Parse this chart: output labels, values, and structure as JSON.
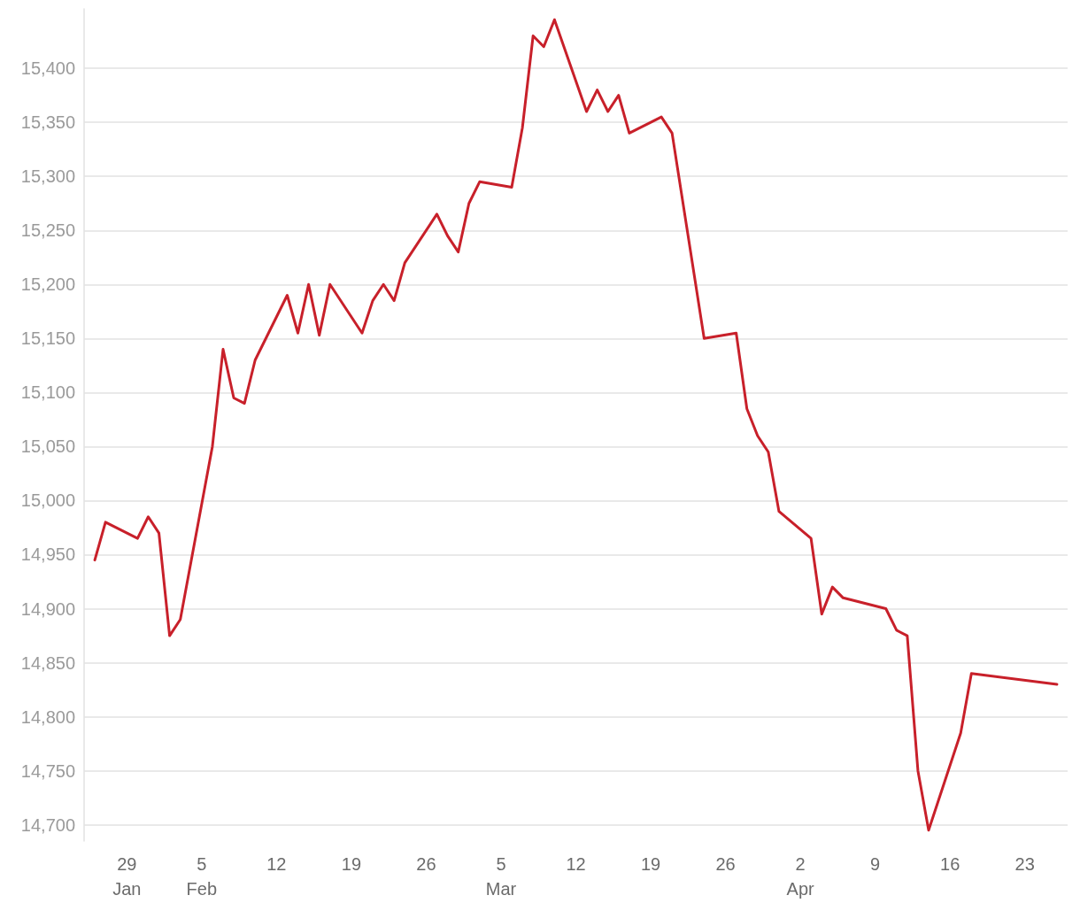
{
  "chart_data": {
    "type": "line",
    "x": [
      "--01-26",
      "--01-27",
      "--01-30",
      "--01-31",
      "--02-01",
      "--02-02",
      "--02-03",
      "--02-06",
      "--02-07",
      "--02-08",
      "--02-09",
      "--02-10",
      "--02-13",
      "--02-14",
      "--02-15",
      "--02-16",
      "--02-17",
      "--02-20",
      "--02-21",
      "--02-22",
      "--02-23",
      "--02-24",
      "--02-27",
      "--02-28",
      "--03-01",
      "--03-02",
      "--03-03",
      "--03-06",
      "--03-07",
      "--03-08",
      "--03-09",
      "--03-10",
      "--03-13",
      "--03-14",
      "--03-15",
      "--03-16",
      "--03-17",
      "--03-20",
      "--03-21",
      "--03-24",
      "--03-27",
      "--03-28",
      "--03-29",
      "--03-30",
      "--03-31",
      "--04-03",
      "--04-04",
      "--04-05",
      "--04-06",
      "--04-10",
      "--04-11",
      "--04-12",
      "--04-13",
      "--04-14",
      "--04-17",
      "--04-18",
      "--04-26"
    ],
    "series": [
      {
        "color": "#c8202a",
        "values": [
          14945,
          14980,
          14965,
          14985,
          14970,
          14875,
          14890,
          15050,
          15140,
          15095,
          15090,
          15130,
          15190,
          15155,
          15200,
          15153,
          15200,
          15155,
          15185,
          15200,
          15185,
          15220,
          15265,
          15245,
          15230,
          15275,
          15295,
          15290,
          15345,
          15430,
          15420,
          15445,
          15360,
          15380,
          15360,
          15375,
          15340,
          15355,
          15340,
          15150,
          15155,
          15085,
          15060,
          15045,
          14990,
          14965,
          14895,
          14920,
          14910,
          14900,
          14880,
          14875,
          14750,
          14695,
          14785,
          14840,
          14830
        ]
      }
    ],
    "xlim": [
      "--01-25",
      "--04-27"
    ],
    "xticks": [
      {
        "value": "--01-29",
        "label": "29\nJan"
      },
      {
        "value": "--02-05",
        "label": "5\nFeb"
      },
      {
        "value": "--02-12",
        "label": "12"
      },
      {
        "value": "--02-19",
        "label": "19"
      },
      {
        "value": "--02-26",
        "label": "26"
      },
      {
        "value": "--03-05",
        "label": "5\nMar"
      },
      {
        "value": "--03-12",
        "label": "12"
      },
      {
        "value": "--03-19",
        "label": "19"
      },
      {
        "value": "--03-26",
        "label": "26"
      },
      {
        "value": "--04-02",
        "label": "2\nApr"
      },
      {
        "value": "--04-09",
        "label": "9"
      },
      {
        "value": "--04-16",
        "label": "16"
      },
      {
        "value": "--04-23",
        "label": "23"
      }
    ],
    "ylim": [
      14685,
      15455
    ],
    "yticks": [
      {
        "value": 14700,
        "label": "14,700"
      },
      {
        "value": 14750,
        "label": "14,750"
      },
      {
        "value": 14800,
        "label": "14,800"
      },
      {
        "value": 14850,
        "label": "14,850"
      },
      {
        "value": 14900,
        "label": "14,900"
      },
      {
        "value": 14950,
        "label": "14,950"
      },
      {
        "value": 15000,
        "label": "15,000"
      },
      {
        "value": 15050,
        "label": "15,050"
      },
      {
        "value": 15100,
        "label": "15,100"
      },
      {
        "value": 15150,
        "label": "15,150"
      },
      {
        "value": 15200,
        "label": "15,200"
      },
      {
        "value": 15250,
        "label": "15,250"
      },
      {
        "value": 15300,
        "label": "15,300"
      },
      {
        "value": 15350,
        "label": "15,350"
      },
      {
        "value": 15400,
        "label": "15,400"
      }
    ],
    "grid": "y",
    "marker": "none",
    "line_style": "solid"
  }
}
